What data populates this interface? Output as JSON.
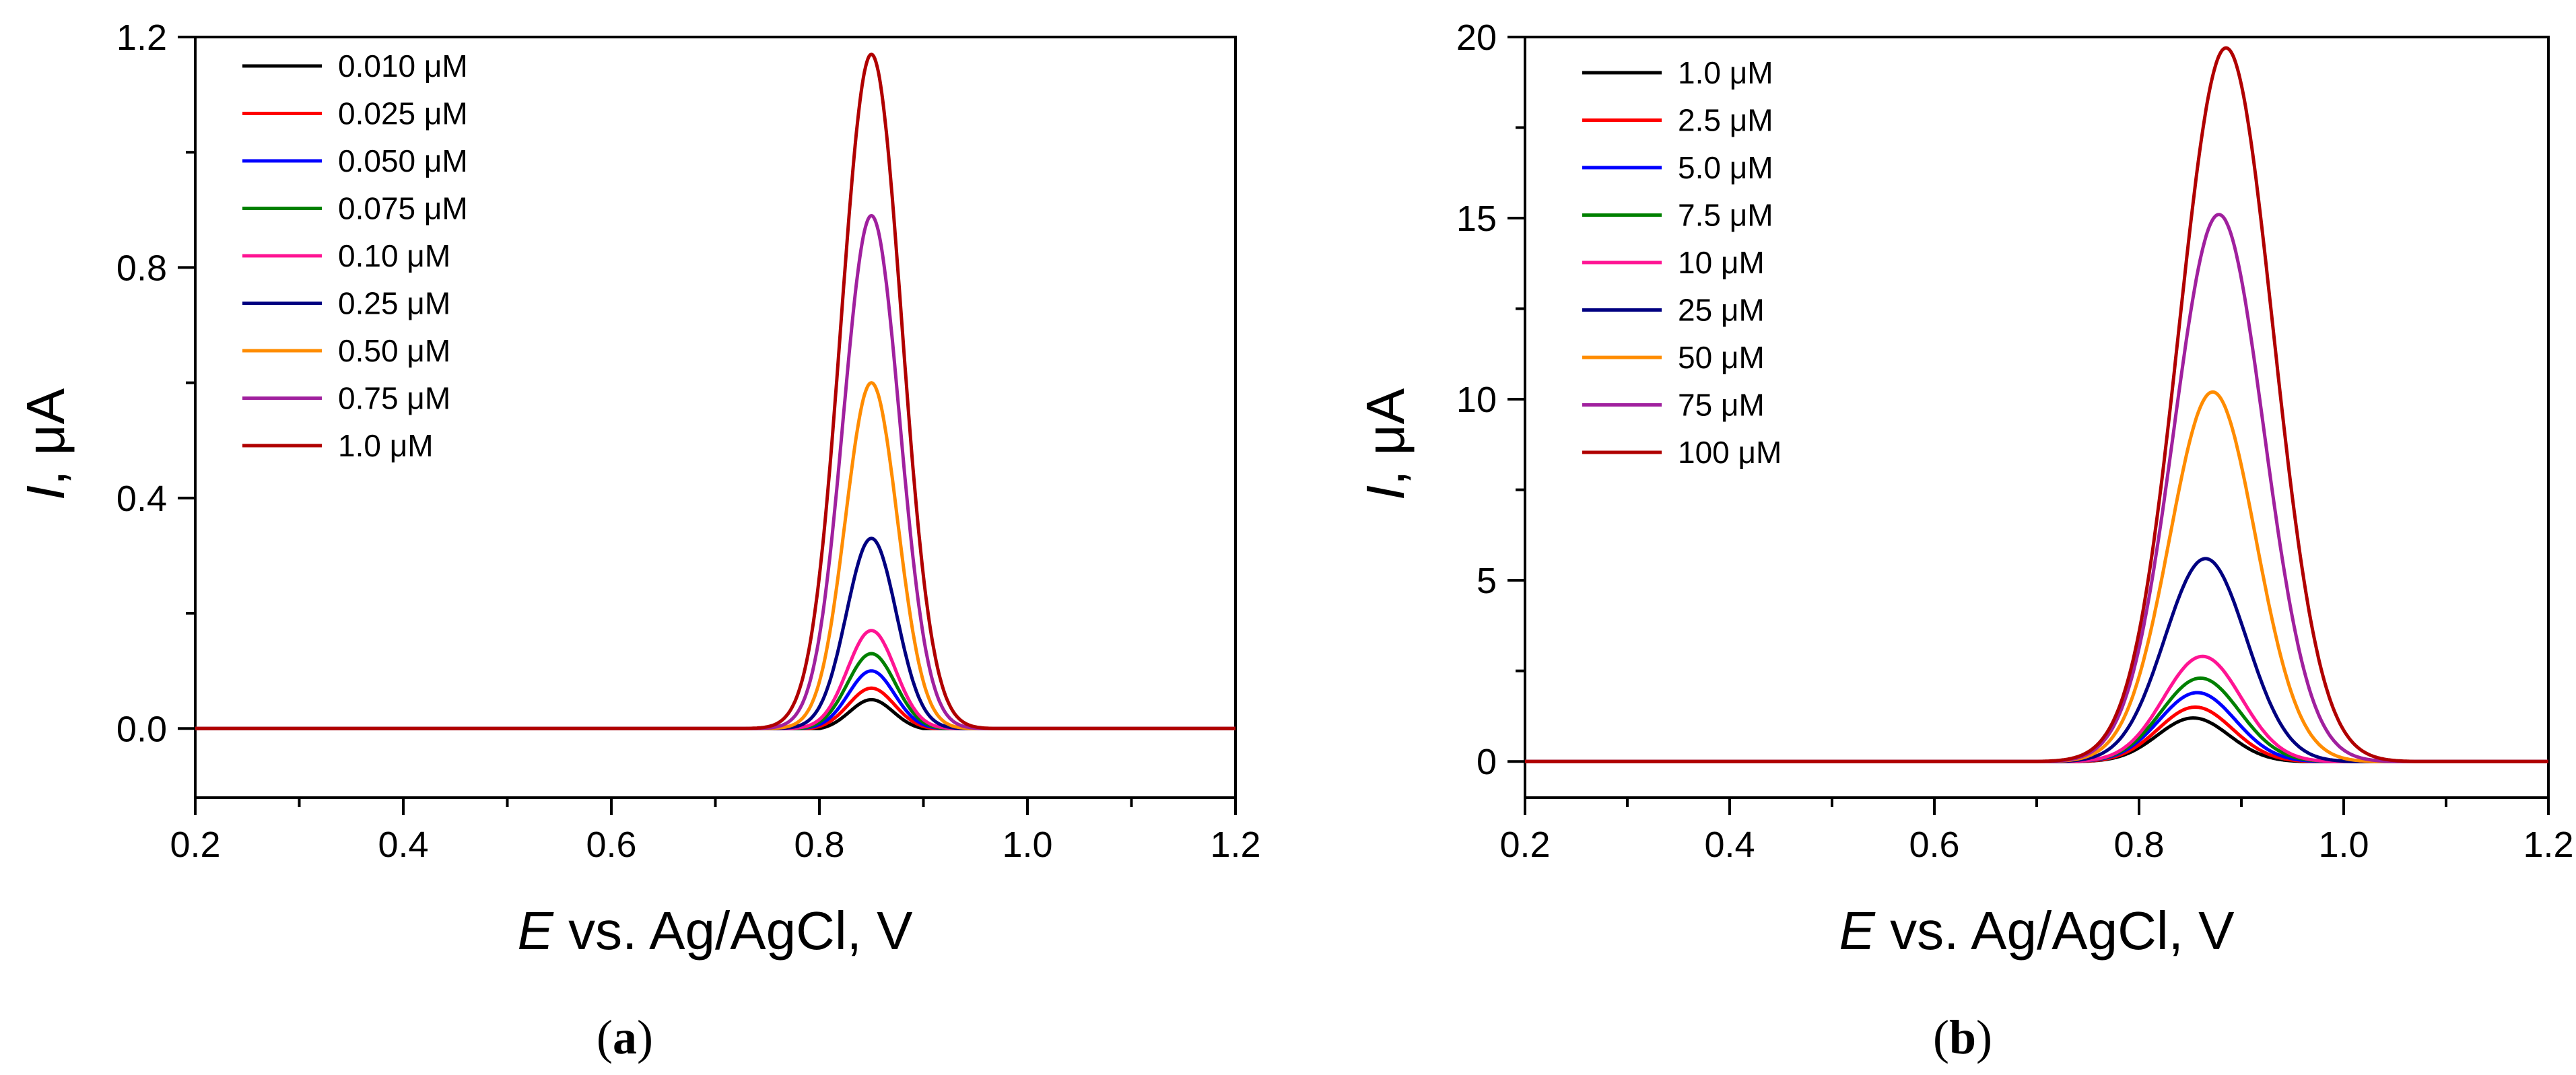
{
  "chart_data": [
    {
      "type": "line",
      "panel": "a",
      "caption_prefix": "(",
      "caption_letter": "a",
      "caption_suffix": ")",
      "xlabel_italic": "E",
      "xlabel_rest": " vs. Ag/AgCl, V",
      "ylabel_italic": "I",
      "ylabel_rest": ", μA",
      "xlim": [
        0.2,
        1.2
      ],
      "ylim": [
        -0.12,
        1.2
      ],
      "xticks": [
        0.2,
        0.4,
        0.6,
        0.8,
        1.0,
        1.2
      ],
      "xtick_labels": [
        "0.2",
        "0.4",
        "0.6",
        "0.8",
        "1.0",
        "1.2"
      ],
      "yticks": [
        0.0,
        0.4,
        0.8,
        1.2
      ],
      "ytick_labels": [
        "0.0",
        "0.4",
        "0.8",
        "1.2"
      ],
      "legend_position": "top-left",
      "series": [
        {
          "name": "0.010 μM",
          "color": "#000000",
          "peak_x": 0.85,
          "peak_y": 0.05,
          "width": 0.021,
          "onset": 0.8,
          "offset": 0.9
        },
        {
          "name": "0.025 μM",
          "color": "#ff0000",
          "peak_x": 0.85,
          "peak_y": 0.07,
          "width": 0.022,
          "onset": 0.79,
          "offset": 0.91
        },
        {
          "name": "0.050 μM",
          "color": "#0000ff",
          "peak_x": 0.85,
          "peak_y": 0.1,
          "width": 0.022,
          "onset": 0.78,
          "offset": 0.92
        },
        {
          "name": "0.075 μM",
          "color": "#008000",
          "peak_x": 0.85,
          "peak_y": 0.13,
          "width": 0.023,
          "onset": 0.78,
          "offset": 0.92
        },
        {
          "name": "0.10 μM",
          "color": "#ff1493",
          "peak_x": 0.85,
          "peak_y": 0.17,
          "width": 0.023,
          "onset": 0.77,
          "offset": 0.93
        },
        {
          "name": "0.25 μM",
          "color": "#000080",
          "peak_x": 0.85,
          "peak_y": 0.33,
          "width": 0.024,
          "onset": 0.75,
          "offset": 0.94
        },
        {
          "name": "0.50 μM",
          "color": "#ff8c00",
          "peak_x": 0.85,
          "peak_y": 0.6,
          "width": 0.025,
          "onset": 0.74,
          "offset": 0.95
        },
        {
          "name": "0.75 μM",
          "color": "#a0209e",
          "peak_x": 0.85,
          "peak_y": 0.89,
          "width": 0.027,
          "onset": 0.73,
          "offset": 0.96
        },
        {
          "name": "1.0 μM",
          "color": "#b00000",
          "peak_x": 0.85,
          "peak_y": 1.17,
          "width": 0.029,
          "onset": 0.72,
          "offset": 0.97
        }
      ]
    },
    {
      "type": "line",
      "panel": "b",
      "caption_prefix": "(",
      "caption_letter": "b",
      "caption_suffix": ")",
      "xlabel_italic": "E",
      "xlabel_rest": " vs. Ag/AgCl, V",
      "ylabel_italic": "I",
      "ylabel_rest": ", μA",
      "xlim": [
        0.2,
        1.2
      ],
      "ylim": [
        -1,
        20
      ],
      "xticks": [
        0.2,
        0.4,
        0.6,
        0.8,
        1.0,
        1.2
      ],
      "xtick_labels": [
        "0.2",
        "0.4",
        "0.6",
        "0.8",
        "1.0",
        "1.2"
      ],
      "yticks": [
        0,
        5,
        10,
        15,
        20
      ],
      "ytick_labels": [
        "0",
        "5",
        "10",
        "15",
        "20"
      ],
      "legend_position": "top-left",
      "series": [
        {
          "name": "1.0 μM",
          "color": "#000000",
          "peak_x": 0.853,
          "peak_y": 1.2,
          "width": 0.035,
          "onset": 0.74,
          "offset": 0.96
        },
        {
          "name": "2.5 μM",
          "color": "#ff0000",
          "peak_x": 0.855,
          "peak_y": 1.5,
          "width": 0.036,
          "onset": 0.74,
          "offset": 0.97
        },
        {
          "name": "5.0 μM",
          "color": "#0000ff",
          "peak_x": 0.857,
          "peak_y": 1.9,
          "width": 0.037,
          "onset": 0.73,
          "offset": 0.98
        },
        {
          "name": "7.5 μM",
          "color": "#008000",
          "peak_x": 0.86,
          "peak_y": 2.3,
          "width": 0.038,
          "onset": 0.73,
          "offset": 0.99
        },
        {
          "name": "10 μM",
          "color": "#ff1493",
          "peak_x": 0.862,
          "peak_y": 2.9,
          "width": 0.038,
          "onset": 0.73,
          "offset": 0.99
        },
        {
          "name": "25 μM",
          "color": "#000080",
          "peak_x": 0.865,
          "peak_y": 5.6,
          "width": 0.04,
          "onset": 0.72,
          "offset": 1.01
        },
        {
          "name": "50 μM",
          "color": "#ff8c00",
          "peak_x": 0.872,
          "peak_y": 10.2,
          "width": 0.042,
          "onset": 0.71,
          "offset": 1.03
        },
        {
          "name": "75 μM",
          "color": "#a0209e",
          "peak_x": 0.878,
          "peak_y": 15.1,
          "width": 0.044,
          "onset": 0.71,
          "offset": 1.05
        },
        {
          "name": "100 μM",
          "color": "#b00000",
          "peak_x": 0.885,
          "peak_y": 19.7,
          "width": 0.046,
          "onset": 0.7,
          "offset": 1.07
        }
      ]
    }
  ]
}
